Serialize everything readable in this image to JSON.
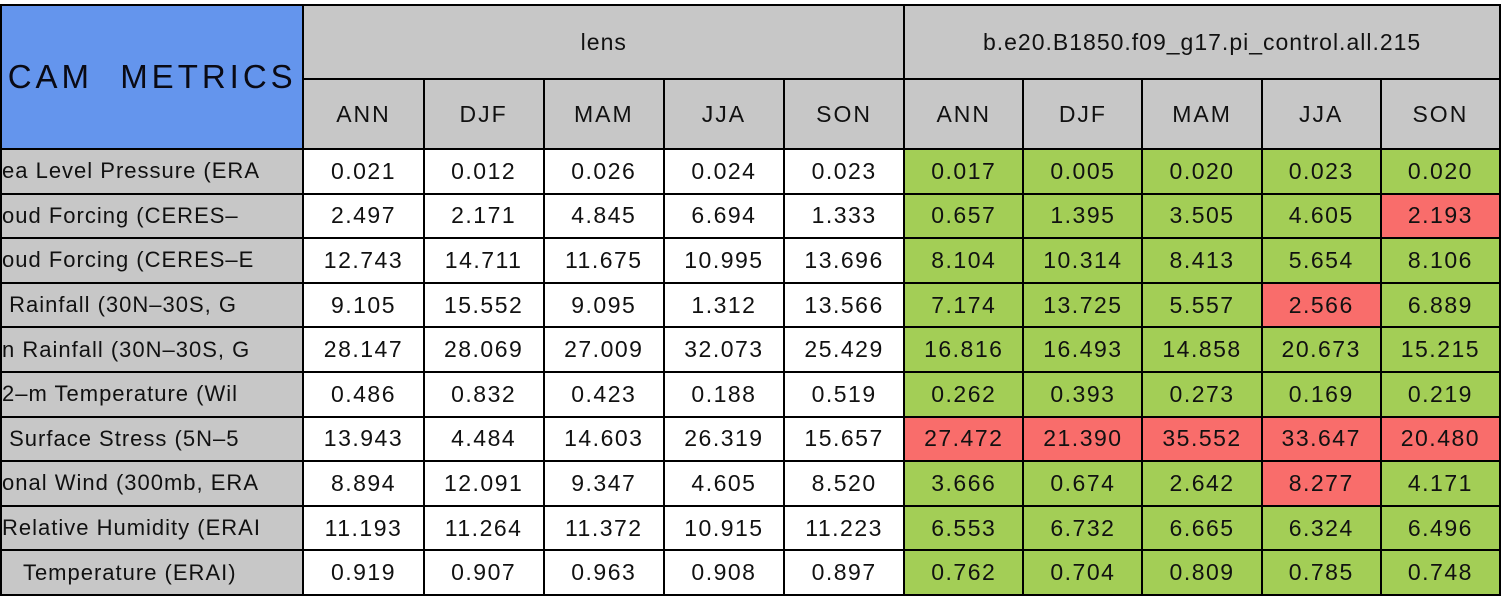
{
  "colors": {
    "title_bg": "#6495ED",
    "header_bg": "#C7C7C7",
    "lens_cell_bg": "#FFFFFF",
    "good_cell_bg": "#A3CE56",
    "bad_cell_bg": "#F96D6B",
    "border": "#000000"
  },
  "chart_data": {
    "type": "table",
    "title": "CAM METRICS",
    "column_groups": [
      {
        "label": "lens",
        "columns": [
          "ANN",
          "DJF",
          "MAM",
          "JJA",
          "SON"
        ]
      },
      {
        "label": "b.e20.B1850.f09_g17.pi_control.all.215",
        "columns": [
          "ANN",
          "DJF",
          "MAM",
          "JJA",
          "SON"
        ]
      }
    ],
    "rows": [
      {
        "label": "ea Level Pressure (ERA",
        "lens": [
          "0.021",
          "0.012",
          "0.026",
          "0.024",
          "0.023"
        ],
        "control": [
          "0.017",
          "0.005",
          "0.020",
          "0.023",
          "0.020"
        ],
        "control_flags": [
          "good",
          "good",
          "good",
          "good",
          "good"
        ]
      },
      {
        "label": "oud Forcing (CERES–",
        "lens": [
          "2.497",
          "2.171",
          "4.845",
          "6.694",
          "1.333"
        ],
        "control": [
          "0.657",
          "1.395",
          "3.505",
          "4.605",
          "2.193"
        ],
        "control_flags": [
          "good",
          "good",
          "good",
          "good",
          "bad"
        ]
      },
      {
        "label": "oud Forcing (CERES–E",
        "lens": [
          "12.743",
          "14.711",
          "11.675",
          "10.995",
          "13.696"
        ],
        "control": [
          "8.104",
          "10.314",
          "8.413",
          "5.654",
          "8.106"
        ],
        "control_flags": [
          "good",
          "good",
          "good",
          "good",
          "good"
        ]
      },
      {
        "label": " Rainfall (30N–30S, G",
        "lens": [
          "9.105",
          "15.552",
          "9.095",
          "1.312",
          "13.566"
        ],
        "control": [
          "7.174",
          "13.725",
          "5.557",
          "2.566",
          "6.889"
        ],
        "control_flags": [
          "good",
          "good",
          "good",
          "bad",
          "good"
        ]
      },
      {
        "label": "n Rainfall (30N–30S, G",
        "lens": [
          "28.147",
          "28.069",
          "27.009",
          "32.073",
          "25.429"
        ],
        "control": [
          "16.816",
          "16.493",
          "14.858",
          "20.673",
          "15.215"
        ],
        "control_flags": [
          "good",
          "good",
          "good",
          "good",
          "good"
        ]
      },
      {
        "label": "2–m Temperature (Wil",
        "lens": [
          "0.486",
          "0.832",
          "0.423",
          "0.188",
          "0.519"
        ],
        "control": [
          "0.262",
          "0.393",
          "0.273",
          "0.169",
          "0.219"
        ],
        "control_flags": [
          "good",
          "good",
          "good",
          "good",
          "good"
        ]
      },
      {
        "label": " Surface Stress (5N–5",
        "lens": [
          "13.943",
          "4.484",
          "14.603",
          "26.319",
          "15.657"
        ],
        "control": [
          "27.472",
          "21.390",
          "35.552",
          "33.647",
          "20.480"
        ],
        "control_flags": [
          "bad",
          "bad",
          "bad",
          "bad",
          "bad"
        ]
      },
      {
        "label": "onal Wind (300mb, ERA",
        "lens": [
          "8.894",
          "12.091",
          "9.347",
          "4.605",
          "8.520"
        ],
        "control": [
          "3.666",
          "0.674",
          "2.642",
          "8.277",
          "4.171"
        ],
        "control_flags": [
          "good",
          "good",
          "good",
          "bad",
          "good"
        ]
      },
      {
        "label": "Relative Humidity (ERAI",
        "lens": [
          "11.193",
          "11.264",
          "11.372",
          "10.915",
          "11.223"
        ],
        "control": [
          "6.553",
          "6.732",
          "6.665",
          "6.324",
          "6.496"
        ],
        "control_flags": [
          "good",
          "good",
          "good",
          "good",
          "good"
        ]
      },
      {
        "label": "   Temperature (ERAI)",
        "lens": [
          "0.919",
          "0.907",
          "0.963",
          "0.908",
          "0.897"
        ],
        "control": [
          "0.762",
          "0.704",
          "0.809",
          "0.785",
          "0.748"
        ],
        "control_flags": [
          "good",
          "good",
          "good",
          "good",
          "good"
        ]
      }
    ]
  }
}
